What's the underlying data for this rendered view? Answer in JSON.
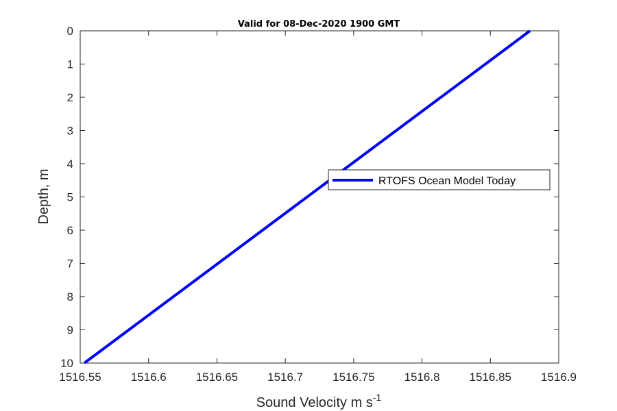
{
  "chart_data": {
    "type": "line",
    "title": "Valid for 08-Dec-2020 1900 GMT",
    "xlabel": "Sound Velocity m s",
    "xlabel_superscript": "-1",
    "ylabel": "Depth, m",
    "xlim": [
      1516.55,
      1516.9
    ],
    "ylim": [
      0,
      10
    ],
    "y_reversed": true,
    "x_ticks": [
      "1516.55",
      "1516.6",
      "1516.65",
      "1516.7",
      "1516.75",
      "1516.8",
      "1516.85",
      "1516.9"
    ],
    "x_tick_values": [
      1516.55,
      1516.6,
      1516.65,
      1516.7,
      1516.75,
      1516.8,
      1516.85,
      1516.9
    ],
    "y_ticks": [
      "0",
      "1",
      "2",
      "3",
      "4",
      "5",
      "6",
      "7",
      "8",
      "9",
      "10"
    ],
    "y_tick_values": [
      0,
      1,
      2,
      3,
      4,
      5,
      6,
      7,
      8,
      9,
      10
    ],
    "grid": false,
    "legend_position": "center-right",
    "series": [
      {
        "name": "RTOFS Ocean Model Today",
        "color": "#0000ff",
        "x": [
          1516.879,
          1516.553
        ],
        "y": [
          0,
          10
        ]
      }
    ]
  }
}
